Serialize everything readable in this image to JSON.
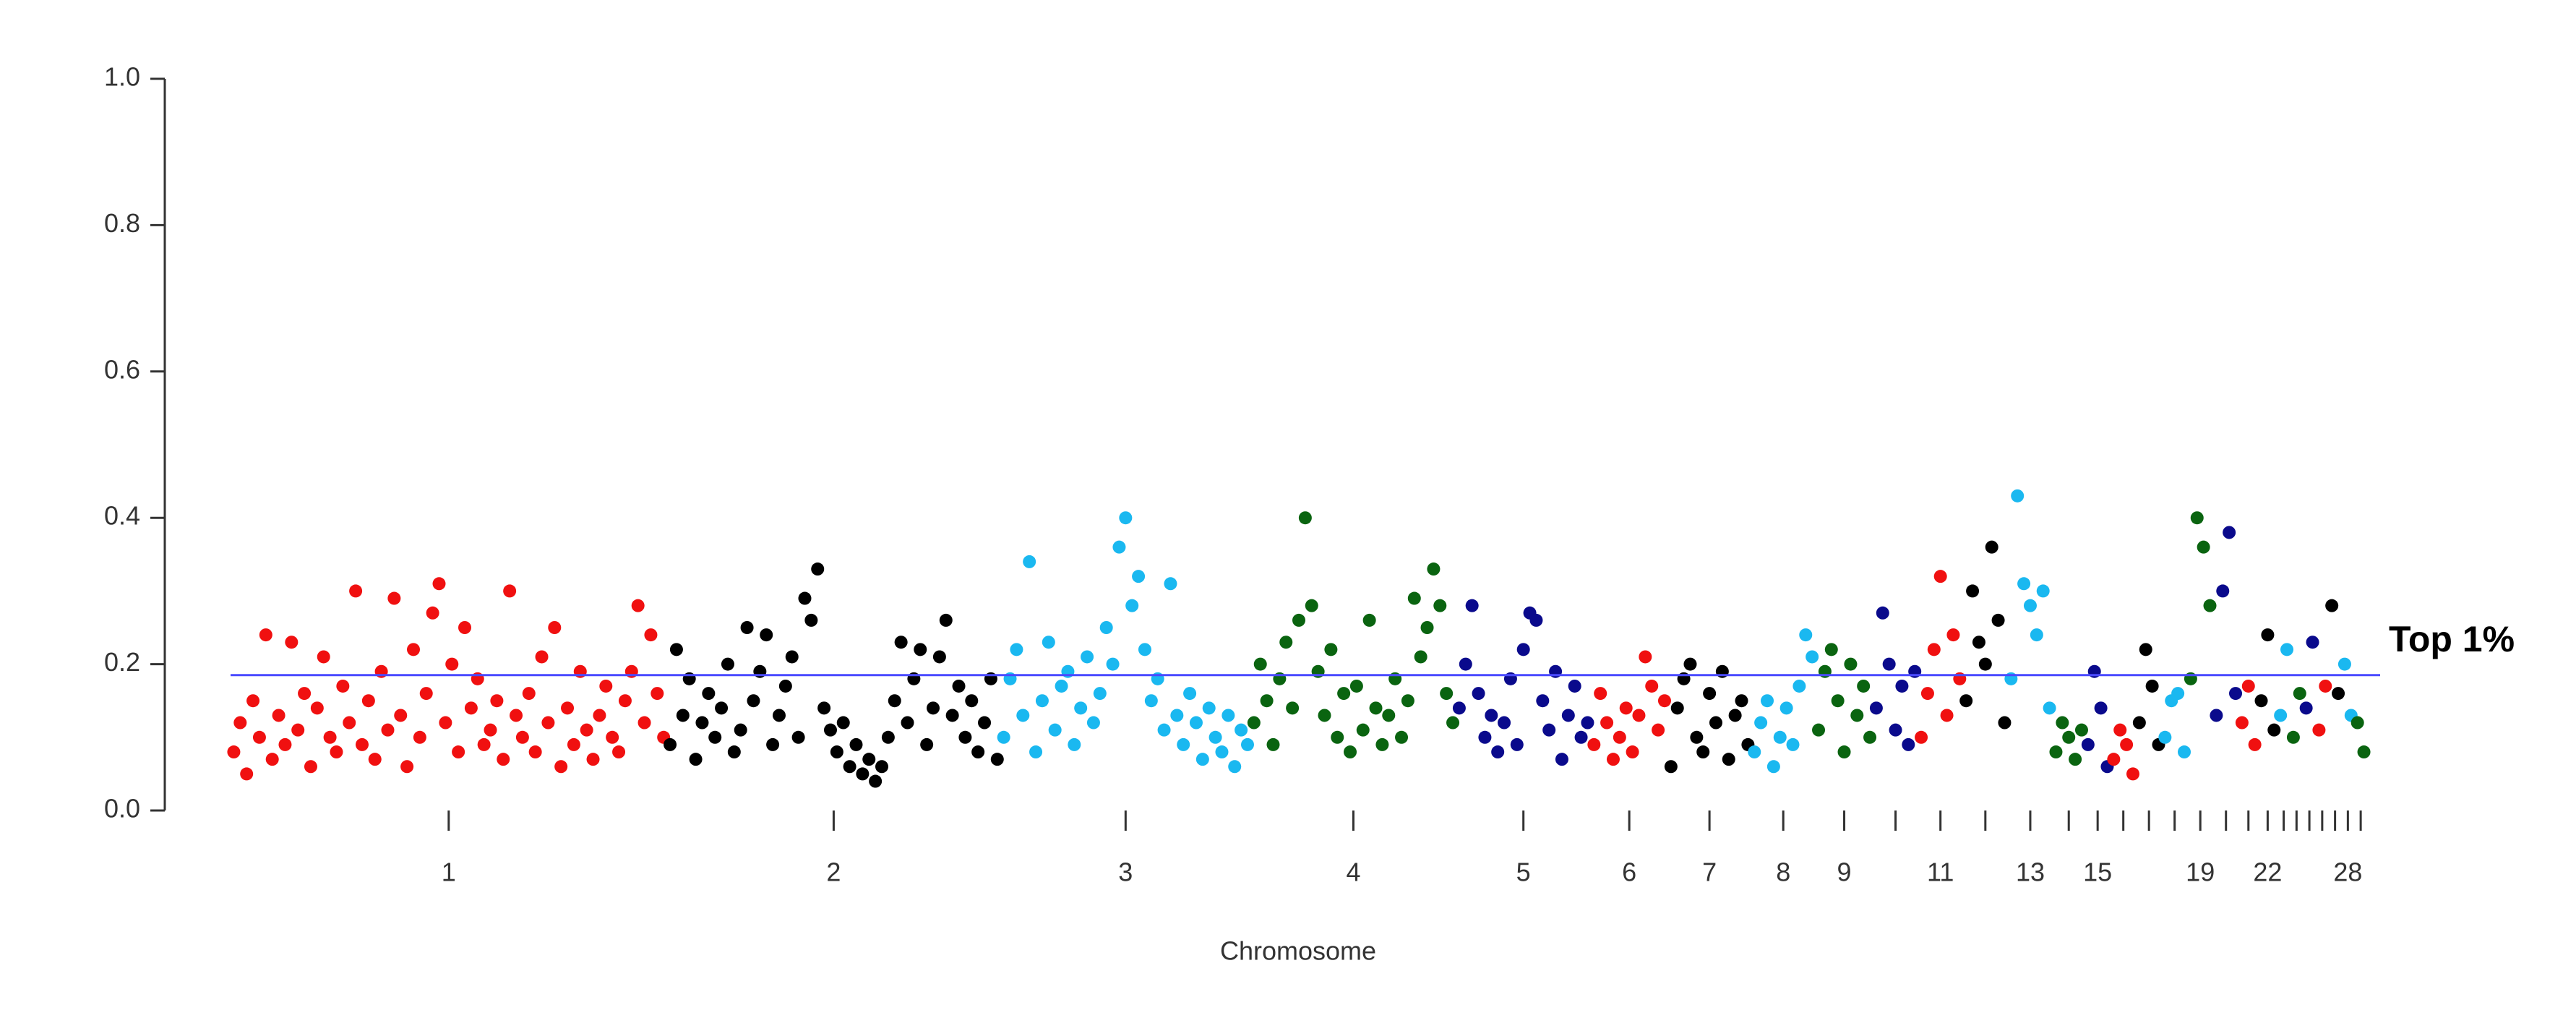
{
  "chart_data": {
    "type": "manhattan",
    "x_label": "Chromosome",
    "ylim": [
      0,
      1
    ],
    "yticks": [
      {
        "value": 0,
        "label": "0.0"
      },
      0.2,
      0.4,
      0.6,
      0.8,
      {
        "value": 1,
        "label": "1.0"
      }
    ],
    "threshold": 0.185,
    "threshold_label": "Top 1%",
    "threshold_color": "#4a4aff",
    "groups": [
      {
        "label": "1",
        "color": "#f01010",
        "values": [
          0.08,
          0.12,
          0.05,
          0.15,
          0.1,
          0.24,
          0.07,
          0.13,
          0.09,
          0.23,
          0.11,
          0.16,
          0.06,
          0.14,
          0.21,
          0.1,
          0.08,
          0.17,
          0.12,
          0.3,
          0.09,
          0.15,
          0.07,
          0.19,
          0.11,
          0.29,
          0.13,
          0.06,
          0.22,
          0.1,
          0.16,
          0.27,
          0.31,
          0.12,
          0.2,
          0.08,
          0.25,
          0.14,
          0.18,
          0.09,
          0.11,
          0.15,
          0.07,
          0.3,
          0.13,
          0.1,
          0.16,
          0.08,
          0.21,
          0.12,
          0.25,
          0.06,
          0.14,
          0.09,
          0.19,
          0.11,
          0.07,
          0.13,
          0.17,
          0.1,
          0.08,
          0.15,
          0.19,
          0.28,
          0.12,
          0.24,
          0.16,
          0.1
        ]
      },
      {
        "label": "2",
        "color": "#000000",
        "values": [
          0.09,
          0.22,
          0.13,
          0.18,
          0.07,
          0.12,
          0.16,
          0.1,
          0.14,
          0.2,
          0.08,
          0.11,
          0.25,
          0.15,
          0.19,
          0.24,
          0.09,
          0.13,
          0.17,
          0.21,
          0.1,
          0.29,
          0.26,
          0.33,
          0.14,
          0.11,
          0.08,
          0.12,
          0.06,
          0.09,
          0.05,
          0.07,
          0.04,
          0.06,
          0.1,
          0.15,
          0.23,
          0.12,
          0.18,
          0.22,
          0.09,
          0.14,
          0.21,
          0.26,
          0.13,
          0.17,
          0.1,
          0.15,
          0.08,
          0.12,
          0.18,
          0.07
        ]
      },
      {
        "label": "3",
        "color": "#1ab8f0",
        "values": [
          0.1,
          0.18,
          0.22,
          0.13,
          0.34,
          0.08,
          0.15,
          0.23,
          0.11,
          0.17,
          0.19,
          0.09,
          0.14,
          0.21,
          0.12,
          0.16,
          0.25,
          0.2,
          0.36,
          0.4,
          0.28,
          0.32,
          0.22,
          0.15,
          0.18,
          0.11,
          0.31,
          0.13,
          0.09,
          0.16,
          0.12,
          0.07,
          0.14,
          0.1,
          0.08,
          0.13,
          0.06,
          0.11,
          0.09
        ]
      },
      {
        "label": "4",
        "color": "#0a6410",
        "values": [
          0.12,
          0.2,
          0.15,
          0.09,
          0.18,
          0.23,
          0.14,
          0.26,
          0.4,
          0.28,
          0.19,
          0.13,
          0.22,
          0.1,
          0.16,
          0.08,
          0.17,
          0.11,
          0.26,
          0.14,
          0.09,
          0.13,
          0.18,
          0.1,
          0.15,
          0.29,
          0.21,
          0.25,
          0.33,
          0.28,
          0.16,
          0.12
        ]
      },
      {
        "label": "5",
        "color": "#0a0a8c",
        "values": [
          0.14,
          0.2,
          0.28,
          0.16,
          0.1,
          0.13,
          0.08,
          0.12,
          0.18,
          0.09,
          0.22,
          0.27,
          0.26,
          0.15,
          0.11,
          0.19,
          0.07,
          0.13,
          0.17,
          0.1,
          0.12
        ]
      },
      {
        "label": "6",
        "color": "#f01010",
        "values": [
          0.09,
          0.16,
          0.12,
          0.07,
          0.1,
          0.14,
          0.08,
          0.13,
          0.21,
          0.17,
          0.11,
          0.15
        ]
      },
      {
        "label": "7",
        "color": "#000000",
        "values": [
          0.06,
          0.14,
          0.18,
          0.2,
          0.1,
          0.08,
          0.16,
          0.12,
          0.19,
          0.07,
          0.13,
          0.15,
          0.09
        ]
      },
      {
        "label": "8",
        "color": "#1ab8f0",
        "values": [
          0.08,
          0.12,
          0.15,
          0.06,
          0.1,
          0.14,
          0.09,
          0.17,
          0.24,
          0.21
        ]
      },
      {
        "label": "9",
        "color": "#0a6410",
        "values": [
          0.11,
          0.19,
          0.22,
          0.15,
          0.08,
          0.2,
          0.13,
          0.17,
          0.1
        ]
      },
      {
        "label": null,
        "color": "#0a0a8c",
        "values": [
          0.14,
          0.27,
          0.2,
          0.11,
          0.17,
          0.09,
          0.19
        ]
      },
      {
        "label": "11",
        "color": "#f01010",
        "values": [
          0.1,
          0.16,
          0.22,
          0.32,
          0.13,
          0.24,
          0.18
        ]
      },
      {
        "label": null,
        "color": "#000000",
        "values": [
          0.15,
          0.3,
          0.23,
          0.2,
          0.36,
          0.26,
          0.12
        ]
      },
      {
        "label": "13",
        "color": "#1ab8f0",
        "values": [
          0.18,
          0.43,
          0.31,
          0.28,
          0.24,
          0.3,
          0.14
        ]
      },
      {
        "label": null,
        "color": "#0a6410",
        "values": [
          0.08,
          0.12,
          0.1,
          0.07,
          0.11
        ]
      },
      {
        "label": "15",
        "color": "#0a0a8c",
        "values": [
          0.09,
          0.19,
          0.14,
          0.06
        ]
      },
      {
        "label": null,
        "color": "#f01010",
        "values": [
          0.07,
          0.11,
          0.09,
          0.05
        ]
      },
      {
        "label": null,
        "color": "#000000",
        "values": [
          0.12,
          0.22,
          0.17,
          0.09
        ]
      },
      {
        "label": null,
        "color": "#1ab8f0",
        "values": [
          0.1,
          0.15,
          0.16,
          0.08
        ]
      },
      {
        "label": "19",
        "color": "#0a6410",
        "values": [
          0.18,
          0.4,
          0.36,
          0.28
        ]
      },
      {
        "label": null,
        "color": "#0a0a8c",
        "values": [
          0.13,
          0.3,
          0.38,
          0.16
        ]
      },
      {
        "label": null,
        "color": "#f01010",
        "values": [
          0.12,
          0.17,
          0.09
        ]
      },
      {
        "label": "22",
        "color": "#000000",
        "values": [
          0.15,
          0.24,
          0.11
        ]
      },
      {
        "label": null,
        "color": "#1ab8f0",
        "values": [
          0.13,
          0.22
        ]
      },
      {
        "label": null,
        "color": "#0a6410",
        "values": [
          0.1,
          0.16
        ]
      },
      {
        "label": null,
        "color": "#0a0a8c",
        "values": [
          0.14,
          0.23
        ]
      },
      {
        "label": null,
        "color": "#f01010",
        "values": [
          0.11,
          0.17
        ]
      },
      {
        "label": null,
        "color": "#000000",
        "values": [
          0.28,
          0.16
        ]
      },
      {
        "label": "28",
        "color": "#1ab8f0",
        "values": [
          0.2,
          0.13
        ]
      },
      {
        "label": null,
        "color": "#0a6410",
        "values": [
          0.12,
          0.08
        ]
      }
    ]
  }
}
